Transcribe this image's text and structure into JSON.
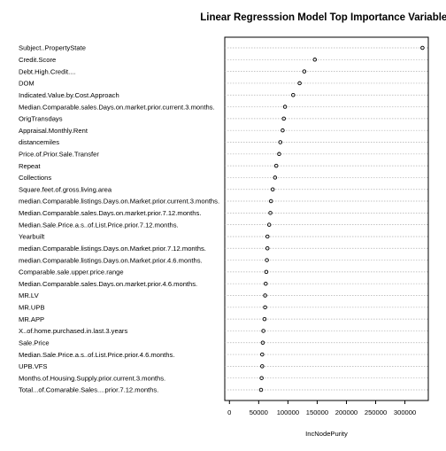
{
  "chart_data": {
    "type": "scatter",
    "style": "dotchart",
    "title": "Linear Regresssion Model Top Importance Variables",
    "xlabel": "IncNodePurity",
    "ylabel": "",
    "xlim": [
      -8000,
      340000
    ],
    "xticks": [
      0,
      50000,
      100000,
      150000,
      200000,
      250000,
      300000
    ],
    "grid": true,
    "marker": "open-circle",
    "variables": [
      "Subject..PropertyState",
      "Credit.Score",
      "Debt.High.Credit....",
      "DOM",
      "Indicated.Value.by.Cost.Approach",
      "Median.Comparable.sales.Days.on.market.prior.current.3.months.",
      "OrigTransdays",
      "Appraisal.Monthly.Rent",
      "distancemiles",
      "Price.of.Prior.Sale.Transfer",
      "Repeat",
      "Collections",
      "Square.feet.of.gross.living.area",
      "median.Comparable.listings.Days.on.Market.prior.current.3.months.",
      "Median.Comparable.sales.Days.on.market.prior.7.12.months.",
      "Median.Sale.Price.a.s..of.List.Price.prior.7.12.months.",
      "Yearbuilt",
      "median.Comparable.listings.Days.on.Market.prior.7.12.months.",
      "median.Comparable.listings.Days.on.Market.prior.4.6.months.",
      "Comparable.sale.upper.price.range",
      "Median.Comparable.sales.Days.on.market.prior.4.6.months.",
      "MR.LV",
      "MR.UPB",
      "MR.APP",
      "X..of.home.purchased.in.last.3.years",
      "Sale.Price",
      "Median.Sale.Price.a.s..of.List.Price.prior.4.6.months.",
      "UPB.VFS",
      "Months.of.Housing.Supply.prior.current.3.months.",
      "Total...of.Comarable.Sales....prior.7.12.months."
    ],
    "values": [
      330000,
      146000,
      128000,
      120000,
      109000,
      95000,
      93000,
      91000,
      87000,
      85000,
      80000,
      78000,
      74000,
      71000,
      70000,
      68000,
      65000,
      65000,
      64000,
      63000,
      62000,
      61000,
      61000,
      60000,
      58000,
      57000,
      56000,
      56000,
      55000,
      54000
    ]
  }
}
